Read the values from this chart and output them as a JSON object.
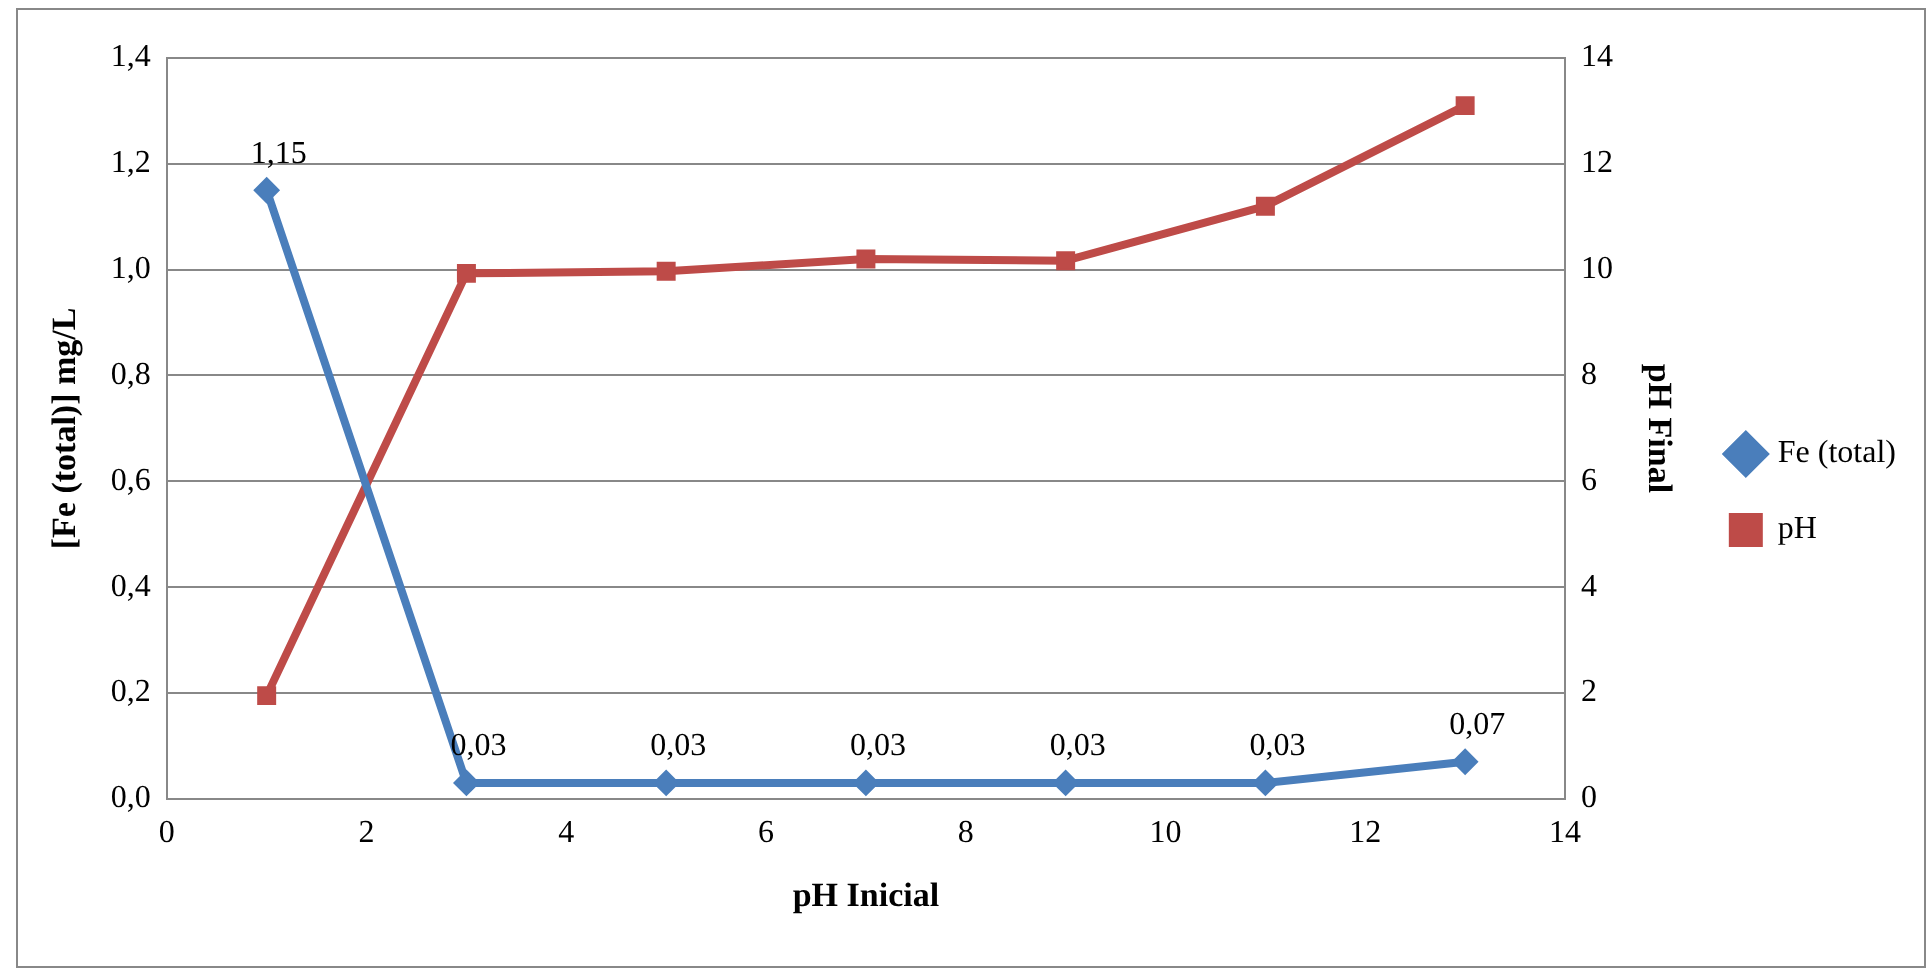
{
  "chart_data": {
    "type": "line",
    "xlabel": "pH Inicial",
    "ylabel": "[Fe (total)] mg/L",
    "y2label": "pH Final",
    "x": [
      1,
      3,
      5,
      7,
      9,
      11,
      13
    ],
    "xlim": [
      0,
      14
    ],
    "xticks": [
      0,
      2,
      4,
      6,
      8,
      10,
      12,
      14
    ],
    "ylim": [
      0,
      1.4
    ],
    "yticks": [
      {
        "value": 0,
        "label": "0,0"
      },
      {
        "value": 0.2,
        "label": "0,2"
      },
      {
        "value": 0.4,
        "label": "0,4"
      },
      {
        "value": 0.6,
        "label": "0,6"
      },
      {
        "value": 0.8,
        "label": "0,8"
      },
      {
        "value": 1,
        "label": "1,0"
      },
      {
        "value": 1.2,
        "label": "1,2"
      },
      {
        "value": 1.4,
        "label": "1,4"
      }
    ],
    "y2lim": [
      0,
      14
    ],
    "y2ticks": [
      0,
      2,
      4,
      6,
      8,
      10,
      12,
      14
    ],
    "grid": "y",
    "legend": "right",
    "series": [
      {
        "name": "Fe (total)",
        "color": "#4a7ebb",
        "marker": "diamond",
        "values": [
          1.15,
          0.03,
          0.03,
          0.03,
          0.03,
          0.03,
          0.07
        ],
        "value_labels": [
          "1,15",
          "0,03",
          "0,03",
          "0,03",
          "0,03",
          "0,03",
          "0,07"
        ]
      },
      {
        "name": "pH",
        "color": "#be4b48",
        "marker": "square",
        "axis": "y2",
        "values": [
          1.95,
          9.93,
          9.97,
          10.2,
          10.17,
          11.2,
          13.1
        ]
      }
    ]
  }
}
